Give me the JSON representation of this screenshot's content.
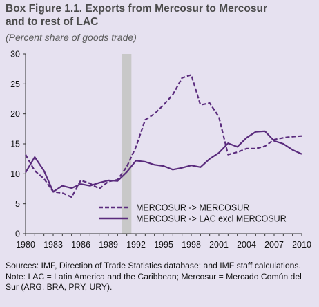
{
  "title_line1": "Box Figure 1.1. Exports from Mercosur to Mercosur",
  "title_line2": "and to rest of LAC",
  "subtitle": "(Percent share of goods trade)",
  "notes": {
    "sources": "Sources: IMF, Direction of Trade Statistics database; and IMF staff calculations.",
    "note": "Note: LAC = Latin America and the Caribbean; Mercosur = Mercado Común del Sur (ARG, BRA, PRY, URY)."
  },
  "colors": {
    "background": "#e6e1f0",
    "series": "#5a2b7d",
    "shade": "#c8c8c8",
    "axis": "#333333"
  },
  "chart_data": {
    "type": "line",
    "x": [
      1980,
      1981,
      1982,
      1983,
      1984,
      1985,
      1986,
      1987,
      1988,
      1989,
      1990,
      1991,
      1992,
      1993,
      1994,
      1995,
      1996,
      1997,
      1998,
      1999,
      2000,
      2001,
      2002,
      2003,
      2004,
      2005,
      2006,
      2007,
      2008,
      2009,
      2010
    ],
    "series": [
      {
        "name": "MERCOSUR -> MERCOSUR",
        "style": "dashed",
        "values": [
          13.2,
          10.5,
          9.2,
          7.0,
          6.8,
          6.1,
          8.9,
          8.4,
          7.5,
          8.7,
          9.0,
          11.2,
          14.5,
          19.0,
          20.0,
          21.5,
          23.2,
          26.0,
          26.5,
          21.5,
          21.8,
          19.5,
          13.2,
          13.6,
          14.2,
          14.2,
          14.6,
          15.7,
          16.0,
          16.2,
          16.3
        ]
      },
      {
        "name": "MERCOSUR -> LAC excl MERCOSUR",
        "style": "solid",
        "values": [
          10.2,
          12.8,
          10.5,
          7.0,
          8.0,
          7.6,
          8.3,
          8.0,
          8.5,
          8.9,
          8.8,
          10.3,
          12.2,
          12.0,
          11.5,
          11.3,
          10.7,
          11.0,
          11.4,
          11.1,
          12.5,
          13.5,
          15.1,
          14.5,
          16.0,
          17.0,
          17.1,
          15.5,
          15.0,
          14.0,
          13.3
        ]
      }
    ],
    "shaded_x": [
      1990.5,
      1991.5
    ],
    "ylim": [
      0,
      30
    ],
    "yticks": [
      0,
      5,
      10,
      15,
      20,
      25,
      30
    ],
    "xlim": [
      1980,
      2010
    ],
    "xticks": [
      1980,
      1983,
      1986,
      1989,
      1992,
      1995,
      1998,
      2001,
      2004,
      2007,
      2010
    ],
    "grid": false,
    "legend_position": "bottom-right"
  }
}
